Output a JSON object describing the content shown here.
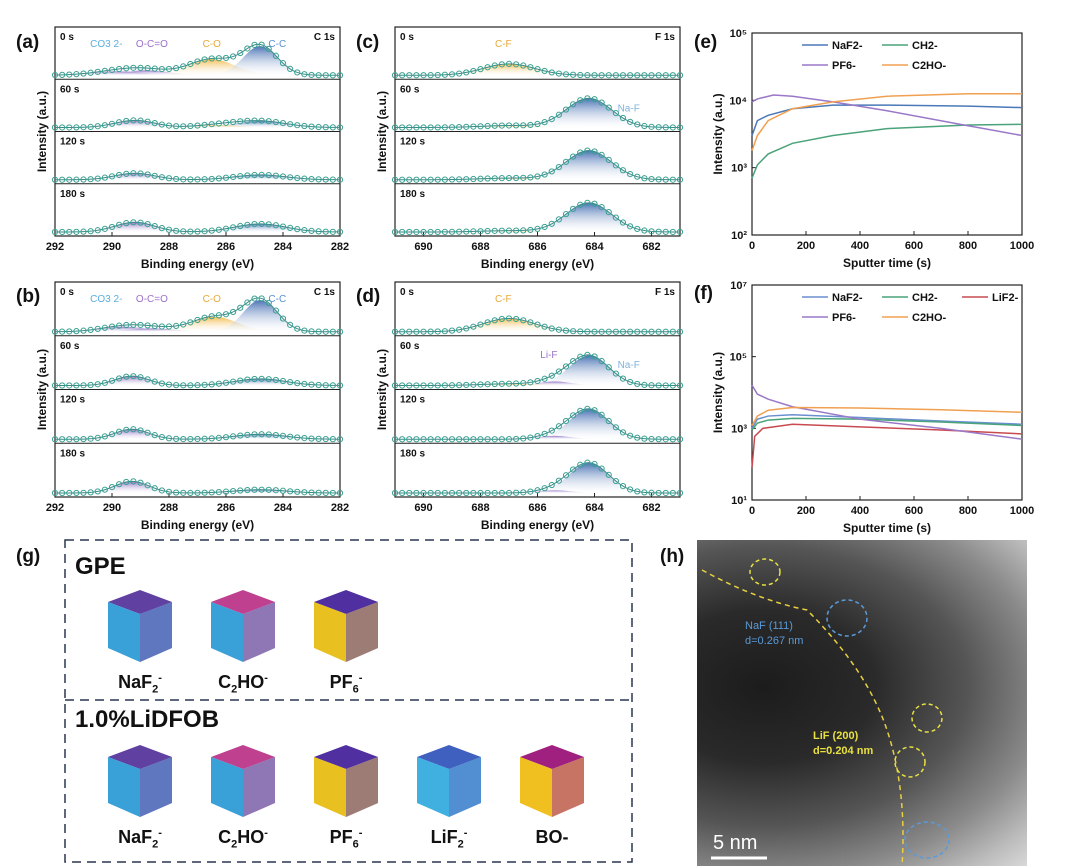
{
  "panel_labels": {
    "a": "(a)",
    "b": "(b)",
    "c": "(c)",
    "d": "(d)",
    "e": "(e)",
    "f": "(f)",
    "g": "(g)",
    "h": "(h)"
  },
  "chart_data": [
    {
      "id": "a",
      "type": "line",
      "title": "C 1s",
      "xlabel": "Binding energy (eV)",
      "ylabel": "Intensity (a.u.)",
      "xlim": [
        292,
        282
      ],
      "xticks": [
        "292",
        "290",
        "288",
        "286",
        "284",
        "282"
      ],
      "stacks": [
        "0 s",
        "60 s",
        "120 s",
        "180 s"
      ],
      "peak_labels": [
        {
          "text": "CO3 2-",
          "x": 290.2,
          "color": "#5aaee0"
        },
        {
          "text": "O-C=O",
          "x": 288.6,
          "color": "#9b6fc8"
        },
        {
          "text": "C-O",
          "x": 286.5,
          "color": "#e8a93a"
        },
        {
          "text": "C-C",
          "x": 284.2,
          "color": "#5a8fd0"
        }
      ],
      "components": [
        [
          [
            289.8,
            0.12,
            0.9
          ],
          [
            288.8,
            0.15,
            0.8
          ],
          [
            286.5,
            0.5,
            0.8
          ],
          [
            284.8,
            0.9,
            0.6
          ]
        ],
        [
          [
            289.2,
            0.22,
            0.7
          ],
          [
            284.8,
            0.2,
            0.9
          ],
          [
            286.3,
            0.07,
            0.8
          ]
        ],
        [
          [
            289.2,
            0.2,
            0.7
          ],
          [
            284.8,
            0.15,
            0.9
          ]
        ],
        [
          [
            289.2,
            0.3,
            0.7
          ],
          [
            284.8,
            0.25,
            0.9
          ]
        ]
      ]
    },
    {
      "id": "c",
      "type": "line",
      "title": "F 1s",
      "xlabel": "Binding energy (eV)",
      "ylabel": "Intensity (a.u.)",
      "xlim": [
        691,
        681
      ],
      "xticks": [
        "690",
        "688",
        "686",
        "684",
        "682"
      ],
      "stacks": [
        "0 s",
        "60 s",
        "120 s",
        "180 s"
      ],
      "peak_labels": [
        {
          "text": "C-F",
          "x": 687.2,
          "color": "#e8a93a"
        },
        {
          "text": "Na-F",
          "x": 682.8,
          "color": "#7fb2dc"
        }
      ],
      "components": [
        [
          [
            687,
            0.35,
            0.9
          ]
        ],
        [
          [
            684.2,
            0.9,
            0.8
          ],
          [
            687,
            0.06,
            1.0
          ]
        ],
        [
          [
            684.2,
            0.9,
            0.8
          ],
          [
            687,
            0.05,
            1.0
          ]
        ],
        [
          [
            684.2,
            0.9,
            0.8
          ],
          [
            687,
            0.04,
            1.0
          ]
        ]
      ]
    },
    {
      "id": "b",
      "type": "line",
      "title": "C 1s",
      "xlabel": "Binding energy (eV)",
      "ylabel": "Intensity (a.u.)",
      "xlim": [
        292,
        282
      ],
      "xticks": [
        "292",
        "290",
        "288",
        "286",
        "284",
        "282"
      ],
      "stacks": [
        "0 s",
        "60 s",
        "120 s",
        "180 s"
      ],
      "peak_labels": [
        {
          "text": "CO3 2-",
          "x": 290.2,
          "color": "#5aaee0"
        },
        {
          "text": "O-C=O",
          "x": 288.6,
          "color": "#9b6fc8"
        },
        {
          "text": "C-O",
          "x": 286.5,
          "color": "#e8a93a"
        },
        {
          "text": "C-C",
          "x": 284.2,
          "color": "#5a8fd0"
        }
      ],
      "components": [
        [
          [
            289.6,
            0.15,
            0.8
          ],
          [
            288.6,
            0.1,
            0.8
          ],
          [
            286.4,
            0.45,
            0.8
          ],
          [
            284.8,
            0.95,
            0.6
          ]
        ],
        [
          [
            289.3,
            0.28,
            0.6
          ],
          [
            284.8,
            0.2,
            0.9
          ]
        ],
        [
          [
            289.3,
            0.3,
            0.6
          ],
          [
            284.8,
            0.15,
            0.9
          ]
        ],
        [
          [
            289.3,
            0.35,
            0.6
          ],
          [
            284.8,
            0.1,
            0.9
          ]
        ]
      ]
    },
    {
      "id": "d",
      "type": "line",
      "title": "F 1s",
      "xlabel": "Binding energy (eV)",
      "ylabel": "Intensity (a.u.)",
      "xlim": [
        691,
        681
      ],
      "xticks": [
        "690",
        "688",
        "686",
        "684",
        "682"
      ],
      "stacks": [
        "0 s",
        "60 s",
        "120 s",
        "180 s"
      ],
      "peak_labels": [
        {
          "text": "C-F",
          "x": 687.2,
          "color": "#e8a93a"
        },
        {
          "text": "Li-F",
          "x": 685.6,
          "color": "#9b6fc8"
        },
        {
          "text": "Na-F",
          "x": 682.8,
          "color": "#7fb2dc"
        }
      ],
      "components": [
        [
          [
            687,
            0.4,
            0.9
          ]
        ],
        [
          [
            684.2,
            0.9,
            0.7
          ],
          [
            685.4,
            0.12,
            0.6
          ],
          [
            687,
            0.05,
            1.0
          ]
        ],
        [
          [
            684.2,
            0.9,
            0.7
          ],
          [
            685.4,
            0.1,
            0.6
          ]
        ],
        [
          [
            684.2,
            0.9,
            0.7
          ],
          [
            685.4,
            0.08,
            0.6
          ]
        ]
      ]
    },
    {
      "id": "e",
      "type": "line",
      "xlabel": "Sputter time (s)",
      "ylabel": "Intensity (a.u.)",
      "xlim": [
        0,
        1000
      ],
      "ylog": [
        2,
        5
      ],
      "xticks": [
        "0",
        "200",
        "400",
        "600",
        "800",
        "1000"
      ],
      "yticks": [
        "10²",
        "10³",
        "10⁴",
        "10⁵"
      ],
      "series": [
        {
          "name": "NaF2-",
          "color": "#4a78b8",
          "x": [
            0,
            20,
            60,
            150,
            300,
            500,
            800,
            1000
          ],
          "y": [
            3000,
            5000,
            6000,
            7500,
            8500,
            8500,
            8200,
            7800
          ]
        },
        {
          "name": "CH2-",
          "color": "#4aa37a",
          "x": [
            0,
            20,
            60,
            150,
            300,
            500,
            800,
            1000
          ],
          "y": [
            700,
            1100,
            1600,
            2300,
            3000,
            3800,
            4300,
            4400
          ]
        },
        {
          "name": "PF6-",
          "color": "#9a78c8",
          "x": [
            0,
            20,
            80,
            150,
            300,
            500,
            800,
            1000
          ],
          "y": [
            9500,
            10500,
            12000,
            11500,
            9500,
            7000,
            4200,
            3000
          ]
        },
        {
          "name": "C2HO-",
          "color": "#f0a050",
          "x": [
            0,
            20,
            60,
            150,
            300,
            500,
            800,
            1000
          ],
          "y": [
            1800,
            3000,
            5000,
            7500,
            9500,
            11500,
            12500,
            12500
          ]
        }
      ]
    },
    {
      "id": "f",
      "type": "line",
      "xlabel": "Sputter time (s)",
      "ylabel": "Intensity (a.u.)",
      "xlim": [
        0,
        1000
      ],
      "ylog": [
        1,
        7
      ],
      "xticks": [
        "0",
        "200",
        "400",
        "600",
        "800",
        "1000"
      ],
      "yticks": [
        "10¹",
        "10³",
        "10⁵",
        "10⁷"
      ],
      "series": [
        {
          "name": "NaF2-",
          "color": "#6a8fd0",
          "x": [
            0,
            20,
            60,
            150,
            400,
            700,
            1000
          ],
          "y": [
            1000,
            1800,
            2200,
            2400,
            2000,
            1600,
            1300
          ]
        },
        {
          "name": "CH2-",
          "color": "#4aa37a",
          "x": [
            0,
            20,
            60,
            150,
            400,
            700,
            1000
          ],
          "y": [
            900,
            1400,
            1700,
            1900,
            1800,
            1500,
            1200
          ]
        },
        {
          "name": "LiF2-",
          "color": "#c84a50",
          "x": [
            0,
            10,
            40,
            150,
            400,
            700,
            1000
          ],
          "y": [
            80,
            600,
            1000,
            1300,
            1100,
            900,
            700
          ]
        },
        {
          "name": "PF6-",
          "color": "#9a78c8",
          "x": [
            0,
            20,
            60,
            150,
            400,
            700,
            1000
          ],
          "y": [
            16000,
            9000,
            6500,
            4000,
            1800,
            1000,
            500
          ]
        },
        {
          "name": "C2HO-",
          "color": "#f0a050",
          "x": [
            0,
            20,
            60,
            150,
            400,
            700,
            1000
          ],
          "y": [
            1200,
            2200,
            3200,
            3800,
            3700,
            3300,
            2800
          ]
        }
      ]
    }
  ],
  "g": {
    "group1_title": "GPE",
    "group2_title": "1.0%LiDFOB",
    "group1": [
      {
        "label": "NaF2-",
        "main": "NaF",
        "sub": "2",
        "sup": "-"
      },
      {
        "label": "C2HO-",
        "main": "C",
        "sub": "2",
        "rest": "HO",
        "sup": "-"
      },
      {
        "label": "PF6-",
        "main": "PF",
        "sub": "6",
        "sup": "-"
      }
    ],
    "group2": [
      {
        "label": "NaF2-",
        "main": "NaF",
        "sub": "2",
        "sup": "-"
      },
      {
        "label": "C2HO-",
        "main": "C",
        "sub": "2",
        "rest": "HO",
        "sup": "-"
      },
      {
        "label": "PF6-",
        "main": "PF",
        "sub": "6",
        "sup": "-"
      },
      {
        "label": "LiF2-",
        "main": "LiF",
        "sub": "2",
        "sup": "-"
      },
      {
        "label": "BO-",
        "main": "BO",
        "sub": "",
        "sup": "-"
      }
    ]
  },
  "h": {
    "naf_line1": "NaF (111)",
    "naf_line2": "d=0.267 nm",
    "lif_line1": "LiF (200)",
    "lif_line2": "d=0.204 nm",
    "scale": "5 nm"
  }
}
